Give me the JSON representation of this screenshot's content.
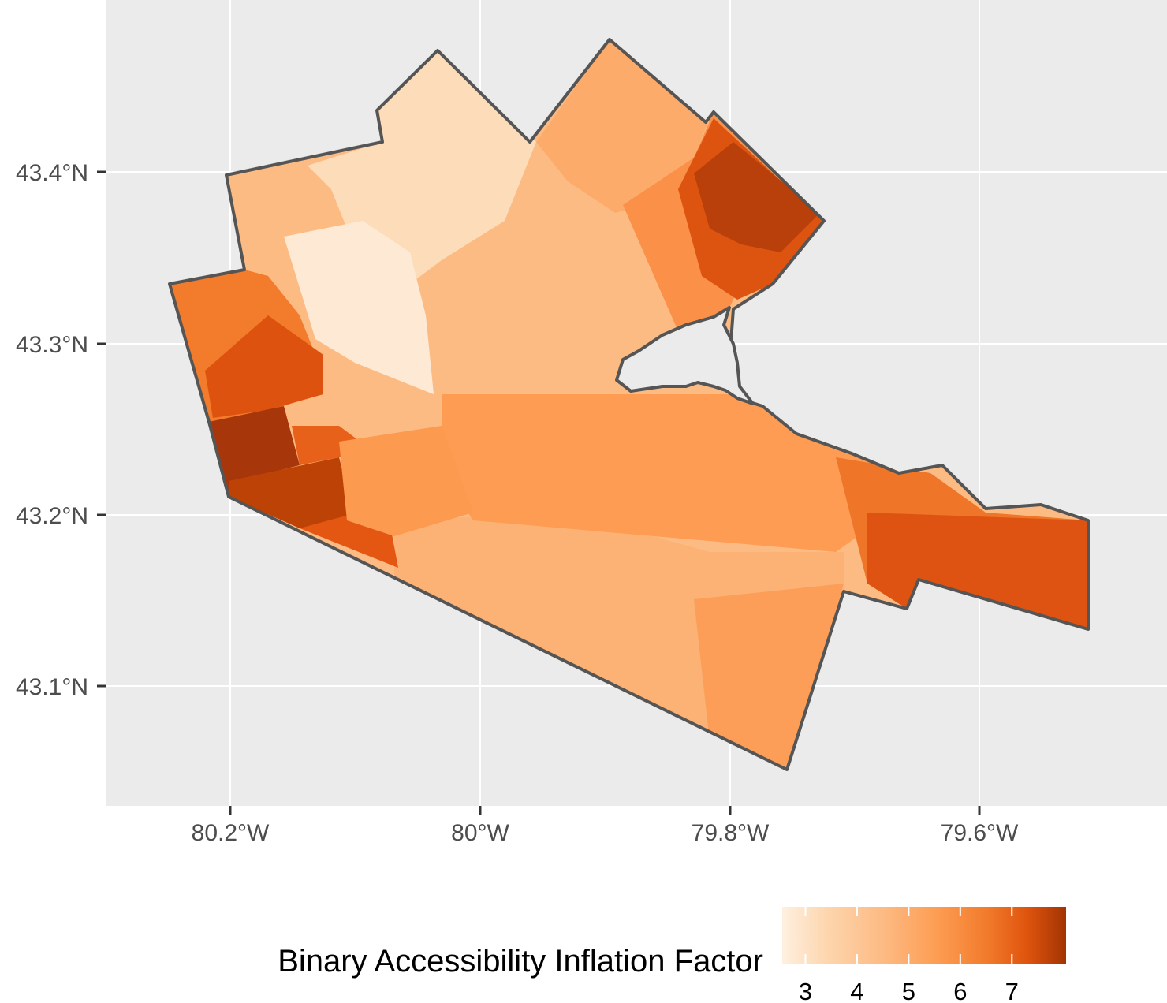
{
  "map": {
    "type": "choropleth",
    "lat_axis": {
      "labels": [
        "43.4°N",
        "43.3°N",
        "43.2°N",
        "43.1°N"
      ],
      "values": [
        43.4,
        43.3,
        43.2,
        43.1
      ]
    },
    "lon_axis": {
      "labels": [
        "80.2°W",
        "80°W",
        "79.8°W",
        "79.6°W"
      ],
      "values": [
        -80.2,
        -80.0,
        -79.8,
        -79.6
      ]
    },
    "grid": true,
    "outline_color": "#555555",
    "water_color": "#ebebeb",
    "colors": {
      "panel": "#ebebeb",
      "gridline": "#ffffff",
      "scale": [
        "#fee9d4",
        "#fdd7b0",
        "#fdbb84",
        "#fd9c52",
        "#f27b2c",
        "#e0550e",
        "#b63c04",
        "#8f2f02"
      ]
    }
  },
  "legend": {
    "title": "Binary Accessibility Inflation Factor",
    "position": "bottom",
    "ticks": [
      "3",
      "4",
      "5",
      "6",
      "7"
    ],
    "tick_values": [
      3,
      4,
      5,
      6,
      7
    ],
    "range": [
      2.55,
      8.05
    ]
  }
}
